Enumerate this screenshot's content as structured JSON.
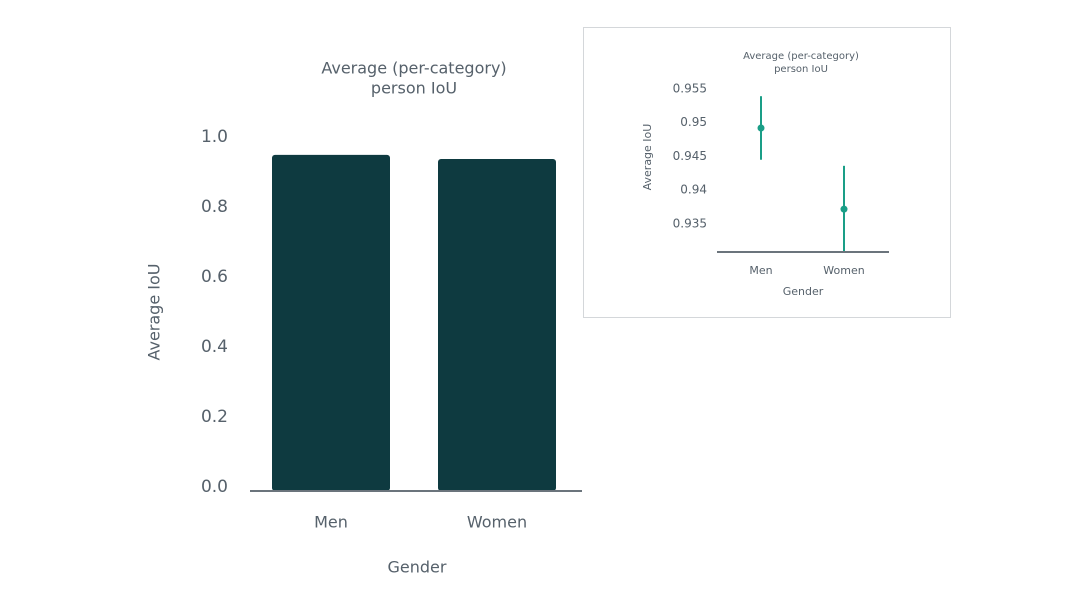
{
  "chart_data": [
    {
      "type": "bar",
      "title": [
        "Average (per-category)",
        "person IoU"
      ],
      "ylabel": "Average IoU",
      "xlabel": "Gender",
      "categories": [
        "Men",
        "Women"
      ],
      "values": [
        0.949,
        0.937
      ],
      "color": "#0e3a40",
      "ylim": [
        0,
        1
      ],
      "yticks": [
        {
          "value": 0,
          "label": "0.0"
        },
        0.2,
        0.4,
        0.6,
        0.8,
        {
          "value": 1,
          "label": "1.0"
        }
      ]
    },
    {
      "type": "errorbar",
      "title": [
        "Average (per-category)",
        "person IoU"
      ],
      "ylabel": "Average IoU",
      "xlabel": "Gender",
      "categories": [
        "Men",
        "Women"
      ],
      "values": [
        0.9492,
        0.9372
      ],
      "errors": [
        0.0047,
        0.0064
      ],
      "color": "#1a9e87",
      "ylim": [
        0.931,
        0.956
      ],
      "yticks": [
        0.935,
        0.94,
        0.945,
        0.95,
        0.955
      ]
    }
  ]
}
